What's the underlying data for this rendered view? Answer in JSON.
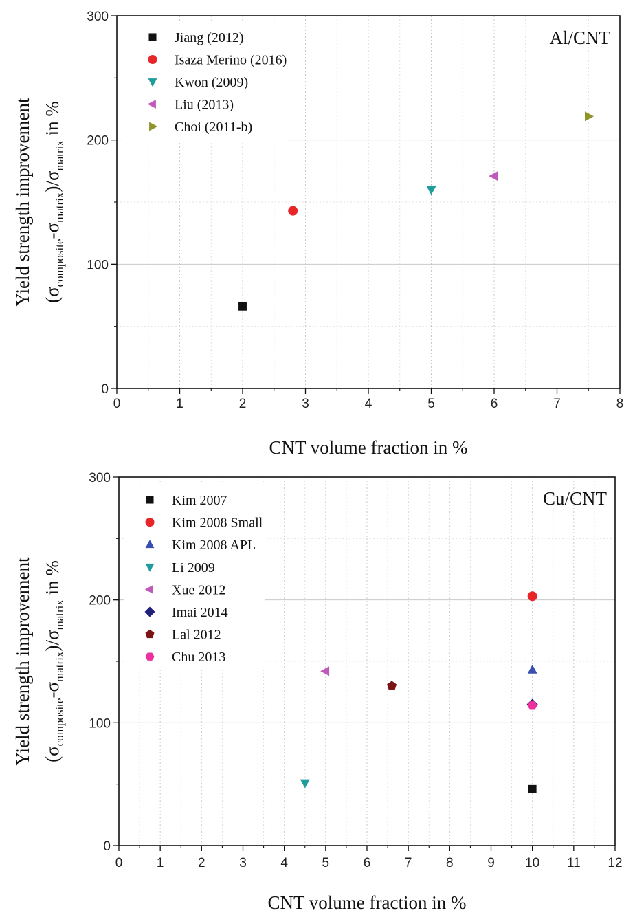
{
  "chart_data": [
    {
      "type": "scatter",
      "annotation": "Al/CNT",
      "xlabel": "CNT volume fraction in %",
      "ylabel_main": "Yield strength improvement",
      "ylabel_formula": {
        "open": "(σ",
        "sub1": "composite",
        "mid": "-σ",
        "sub2": "matrix",
        "close": ")/σ",
        "sub3": "matrix",
        "tail": " in %"
      },
      "xlim": [
        0,
        8
      ],
      "ylim": [
        0,
        300
      ],
      "x_ticks": [
        "0",
        "1",
        "2",
        "3",
        "4",
        "5",
        "6",
        "7",
        "8"
      ],
      "y_ticks": [
        "0",
        "100",
        "200",
        "300"
      ],
      "grid": true,
      "legend_position": "top-left",
      "series": [
        {
          "name": "Jiang (2012)",
          "marker": "square",
          "color": "#111111",
          "x": [
            2.0
          ],
          "y": [
            66
          ]
        },
        {
          "name": "Isaza Merino (2016)",
          "marker": "circle",
          "color": "#e8262a",
          "x": [
            2.8
          ],
          "y": [
            143
          ]
        },
        {
          "name": "Kwon (2009)",
          "marker": "triangle-down",
          "color": "#1f9c9c",
          "x": [
            5.0
          ],
          "y": [
            160
          ]
        },
        {
          "name": "Liu (2013)",
          "marker": "triangle-left",
          "color": "#c05ab8",
          "x": [
            6.0
          ],
          "y": [
            171
          ]
        },
        {
          "name": "Choi (2011-b)",
          "marker": "triangle-right",
          "color": "#8e9428",
          "x": [
            7.5
          ],
          "y": [
            219
          ]
        }
      ]
    },
    {
      "type": "scatter",
      "annotation": "Cu/CNT",
      "xlabel": "CNT volume fraction in %",
      "ylabel_main": "Yield strength improvement",
      "ylabel_formula": {
        "open": "(σ",
        "sub1": "composite",
        "mid": "-σ",
        "sub2": "matrix",
        "close": ")/σ",
        "sub3": "matrix",
        "tail": " in %"
      },
      "xlim": [
        0,
        12
      ],
      "ylim": [
        0,
        300
      ],
      "x_ticks": [
        "0",
        "1",
        "2",
        "3",
        "4",
        "5",
        "6",
        "7",
        "8",
        "9",
        "10",
        "11",
        "12"
      ],
      "y_ticks": [
        "0",
        "100",
        "200",
        "300"
      ],
      "grid": true,
      "legend_position": "top-left",
      "series": [
        {
          "name": "Kim 2007",
          "marker": "square",
          "color": "#111111",
          "x": [
            10.0
          ],
          "y": [
            46
          ]
        },
        {
          "name": "Kim 2008 Small",
          "marker": "circle",
          "color": "#e8262a",
          "x": [
            10.0
          ],
          "y": [
            203
          ]
        },
        {
          "name": "Kim 2008 APL",
          "marker": "triangle-up",
          "color": "#3a4fb0",
          "x": [
            10.0
          ],
          "y": [
            143
          ]
        },
        {
          "name": "Li 2009",
          "marker": "triangle-down",
          "color": "#1f9c9c",
          "x": [
            4.5
          ],
          "y": [
            51
          ]
        },
        {
          "name": "Xue 2012",
          "marker": "triangle-left",
          "color": "#c05ab8",
          "x": [
            5.0
          ],
          "y": [
            142
          ]
        },
        {
          "name": "Imai 2014",
          "marker": "diamond",
          "color": "#20207a",
          "x": [
            10.0
          ],
          "y": [
            115
          ]
        },
        {
          "name": "Lal 2012",
          "marker": "pentagon",
          "color": "#7a1414",
          "x": [
            6.6
          ],
          "y": [
            130
          ]
        },
        {
          "name": "Chu 2013",
          "marker": "hexagon",
          "color": "#ee2f9e",
          "x": [
            10.0
          ],
          "y": [
            114
          ]
        }
      ]
    }
  ]
}
